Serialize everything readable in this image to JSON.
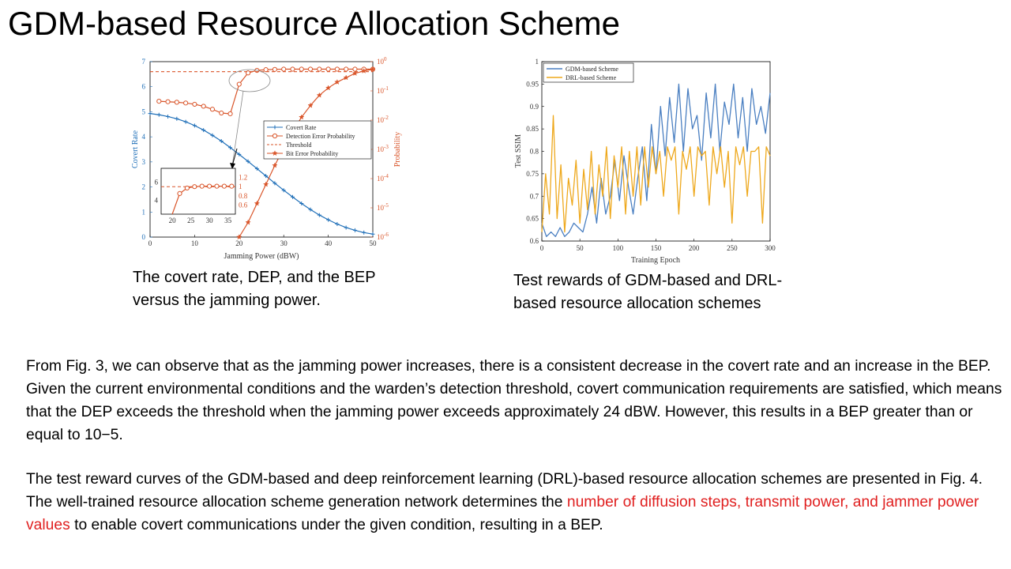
{
  "title": "GDM-based Resource Allocation Scheme",
  "captions": {
    "fig1": "The covert rate, DEP, and the BEP versus the jamming power.",
    "fig2": "Test rewards of GDM-based and DRL-based resource allocation schemes"
  },
  "paragraphs": {
    "p1": "From Fig. 3, we can observe that as the jamming power increases, there is a consistent decrease in the covert rate and an increase in the BEP. Given the current environmental conditions and the warden’s detection threshold, covert communication requirements are satisfied, which means that the DEP exceeds the threshold when the jamming power exceeds approximately 24 dBW. However, this results in a BEP greater than or equal to 10−5.",
    "p2_before": "The test reward curves of the GDM-based and deep reinforcement learning (DRL)-based resource allocation schemes are presented in Fig. 4. The well-trained resource allocation scheme generation network determines the ",
    "p2_highlight": "number of diffusion steps, transmit power, and jammer power values",
    "p2_after": " to enable covert communications under the given condition, resulting in a BEP."
  },
  "colors": {
    "blue": "#1f6fb8",
    "orange": "#d9552a",
    "yellow": "#eea81c",
    "highlight_text": "#e02020"
  },
  "chart_data": [
    {
      "type": "line",
      "xlabel": "Jamming Power (dBW)",
      "ylabel_left": "Covert Rate",
      "ylabel_right": "Probability",
      "xlim": [
        0,
        50
      ],
      "ylim_left": [
        0,
        7
      ],
      "ylim_right_log": [
        -6,
        0
      ],
      "x_ticks": [
        "0",
        "10",
        "20",
        "30",
        "40",
        "50"
      ],
      "y_ticks_left": [
        "0",
        "1",
        "2",
        "3",
        "4",
        "5",
        "6",
        "7"
      ],
      "y_ticks_right": [
        "10^-6",
        "10^-5",
        "10^-4",
        "10^-3",
        "10^-2",
        "10^-1",
        "10^0"
      ],
      "legend_position": "center-right",
      "series": [
        {
          "name": "Covert Rate",
          "axis": "left",
          "marker": "plus",
          "color": "#1f6fb8",
          "x": [
            0,
            2,
            4,
            6,
            8,
            10,
            12,
            14,
            16,
            18,
            20,
            22,
            24,
            26,
            28,
            30,
            32,
            34,
            36,
            38,
            40,
            42,
            44,
            46,
            48,
            50
          ],
          "y": [
            4.93,
            4.88,
            4.81,
            4.72,
            4.6,
            4.45,
            4.27,
            4.06,
            3.83,
            3.57,
            3.3,
            3.02,
            2.73,
            2.44,
            2.15,
            1.87,
            1.6,
            1.34,
            1.1,
            0.88,
            0.69,
            0.52,
            0.38,
            0.27,
            0.18,
            0.12
          ]
        },
        {
          "name": "Detection Error Probability",
          "axis": "left",
          "marker": "circle",
          "color": "#d9552a",
          "x": [
            2,
            4,
            6,
            8,
            10,
            12,
            14,
            16,
            18,
            20,
            22,
            24,
            26,
            28,
            30,
            32,
            34,
            36,
            38,
            40,
            42,
            44,
            46,
            48,
            50
          ],
          "y": [
            5.42,
            5.4,
            5.38,
            5.35,
            5.3,
            5.22,
            5.1,
            4.95,
            4.92,
            6.1,
            6.55,
            6.65,
            6.68,
            6.69,
            6.7,
            6.7,
            6.7,
            6.7,
            6.7,
            6.7,
            6.7,
            6.7,
            6.7,
            6.7,
            6.7
          ]
        },
        {
          "name": "Threshold",
          "axis": "left",
          "style": "dashed",
          "color": "#d9552a",
          "x": [
            0,
            50
          ],
          "y": [
            6.6,
            6.6
          ]
        },
        {
          "name": "Bit Error Probability",
          "axis": "right_log",
          "marker": "star",
          "color": "#d9552a",
          "x": [
            20,
            22,
            24,
            26,
            28,
            30,
            32,
            34,
            36,
            38,
            40,
            42,
            44,
            46,
            48,
            50
          ],
          "y": [
            -6,
            -5.5,
            -4.85,
            -4.2,
            -3.55,
            -2.95,
            -2.4,
            -1.9,
            -1.5,
            -1.15,
            -0.9,
            -0.7,
            -0.55,
            -0.4,
            -0.32,
            -0.26
          ]
        }
      ],
      "inset": {
        "xlim": [
          17,
          37
        ],
        "ylim": [
          0.4,
          1.4
        ],
        "x_ticks": [
          "20",
          "25",
          "30",
          "35"
        ],
        "y_ticks_left": [
          "4",
          "6"
        ],
        "y_ticks_right": [
          "0.6",
          "0.8",
          "1",
          "1.2"
        ],
        "threshold": 1.0,
        "dep_x": [
          20,
          22,
          24,
          26,
          28,
          30,
          32,
          34,
          36
        ],
        "dep_y": [
          0.4,
          0.85,
          0.97,
          1.0,
          1.01,
          1.01,
          1.01,
          1.01,
          1.01
        ]
      }
    },
    {
      "type": "line",
      "xlabel": "Training Epoch",
      "ylabel": "Test SSIM",
      "xlim": [
        0,
        300
      ],
      "ylim": [
        0.6,
        1
      ],
      "x_ticks": [
        "0",
        "50",
        "100",
        "150",
        "200",
        "250",
        "300"
      ],
      "y_ticks": [
        "0.6",
        "0.65",
        "0.7",
        "0.75",
        "0.8",
        "0.85",
        "0.9",
        "0.95",
        "1"
      ],
      "legend_position": "top-left",
      "series": [
        {
          "name": "GDM-based Scheme",
          "color": "#4a7fc1",
          "x": [
            0,
            6,
            12,
            18,
            24,
            30,
            36,
            42,
            48,
            54,
            60,
            66,
            72,
            78,
            84,
            90,
            96,
            102,
            108,
            114,
            120,
            126,
            132,
            138,
            144,
            150,
            156,
            162,
            168,
            174,
            180,
            186,
            192,
            198,
            204,
            210,
            216,
            222,
            228,
            234,
            240,
            246,
            252,
            258,
            264,
            270,
            276,
            282,
            288,
            294,
            300
          ],
          "y": [
            0.64,
            0.61,
            0.62,
            0.61,
            0.63,
            0.61,
            0.62,
            0.64,
            0.63,
            0.62,
            0.66,
            0.72,
            0.64,
            0.74,
            0.66,
            0.7,
            0.78,
            0.69,
            0.79,
            0.72,
            0.66,
            0.74,
            0.81,
            0.69,
            0.86,
            0.75,
            0.9,
            0.79,
            0.92,
            0.82,
            0.95,
            0.8,
            0.94,
            0.85,
            0.88,
            0.78,
            0.93,
            0.83,
            0.95,
            0.8,
            0.91,
            0.86,
            0.95,
            0.83,
            0.92,
            0.8,
            0.94,
            0.86,
            0.9,
            0.84,
            0.93
          ]
        },
        {
          "name": "DRL-based Scheme",
          "color": "#eea81c",
          "x": [
            0,
            5,
            10,
            15,
            20,
            25,
            30,
            35,
            40,
            45,
            50,
            55,
            60,
            65,
            70,
            75,
            80,
            85,
            90,
            95,
            100,
            105,
            110,
            115,
            120,
            125,
            130,
            135,
            140,
            145,
            150,
            155,
            160,
            165,
            170,
            175,
            180,
            185,
            190,
            195,
            200,
            205,
            210,
            215,
            220,
            225,
            230,
            235,
            240,
            245,
            250,
            255,
            260,
            265,
            270,
            275,
            280,
            285,
            290,
            295,
            300
          ],
          "y": [
            0.62,
            0.75,
            0.66,
            0.88,
            0.65,
            0.77,
            0.62,
            0.74,
            0.68,
            0.78,
            0.64,
            0.76,
            0.67,
            0.8,
            0.66,
            0.77,
            0.7,
            0.81,
            0.65,
            0.79,
            0.72,
            0.81,
            0.66,
            0.8,
            0.7,
            0.81,
            0.68,
            0.81,
            0.72,
            0.81,
            0.75,
            0.8,
            0.7,
            0.81,
            0.78,
            0.81,
            0.66,
            0.8,
            0.76,
            0.81,
            0.7,
            0.81,
            0.79,
            0.8,
            0.68,
            0.81,
            0.75,
            0.81,
            0.72,
            0.8,
            0.64,
            0.81,
            0.77,
            0.81,
            0.7,
            0.8,
            0.8,
            0.81,
            0.64,
            0.81,
            0.79
          ]
        }
      ]
    }
  ]
}
